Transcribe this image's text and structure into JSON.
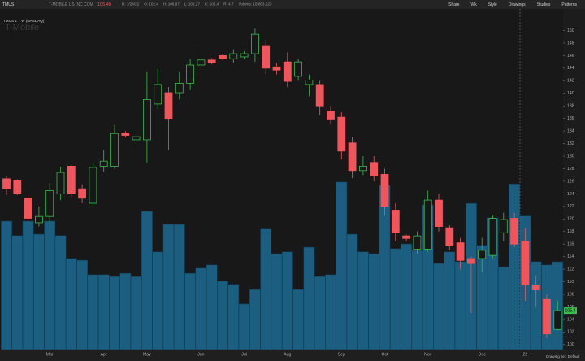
{
  "chart_data": {
    "type": "candlestick",
    "symbol": "TMUS",
    "company": "T-MOBILE US INC COM",
    "last_price": "105.40",
    "info": [
      "D: 1/24/22",
      "O: 102.4",
      "H: 106.97",
      "L: 102.27",
      "C: 105.4",
      "R: 4.7",
      "Volume: 18,863,623"
    ],
    "chart_label": "TMUS 1 Y W (NASDAQ)",
    "watermark": "T-Mobile",
    "toolbar": [
      "Share",
      "Wk",
      "Style",
      "Drawings",
      "Studies",
      "Patterns"
    ],
    "footer": "Drawing set: Default",
    "last_price_tag": "105.4",
    "categories": [
      null,
      null,
      null,
      null,
      "Mar",
      null,
      null,
      null,
      null,
      "Apr",
      null,
      null,
      null,
      "May",
      null,
      null,
      null,
      null,
      "Jun",
      null,
      null,
      null,
      "Jul",
      null,
      null,
      null,
      "Aug",
      null,
      null,
      null,
      null,
      "Sep",
      null,
      null,
      null,
      "Oct",
      null,
      null,
      null,
      "Nov",
      null,
      null,
      null,
      null,
      "Dec",
      null,
      null,
      null,
      "22",
      null,
      null,
      null
    ],
    "open": [
      126.4,
      126.1,
      123.3,
      119.4,
      120.4,
      124.0,
      128.4,
      124.8,
      122.5,
      128.4,
      128.4,
      133.7,
      132.6,
      132.6,
      138.3,
      140.1,
      140.1,
      141.6,
      144.5,
      145.3,
      146.0,
      145.5,
      145.8,
      146.3,
      147.6,
      144.2,
      145.0,
      142.7,
      141.4,
      141.4,
      137.2,
      136.2,
      132.1,
      127.7,
      129.0,
      127.1,
      121.4,
      117.3,
      115.2,
      115.2,
      123.0,
      118.6,
      116.2,
      113.7,
      113.7,
      114.2,
      117.8,
      120.1,
      116.5,
      109.5,
      107.2,
      102.4
    ],
    "high": [
      126.9,
      126.3,
      123.8,
      122.0,
      125.8,
      128.3,
      128.6,
      125.5,
      128.8,
      131.0,
      135.0,
      134.0,
      133.5,
      143.5,
      143.9,
      141.0,
      143.5,
      145.5,
      148.0,
      145.6,
      146.2,
      147.0,
      146.7,
      150.3,
      148.5,
      144.8,
      146.5,
      145.5,
      143.0,
      142.0,
      138.0,
      137.0,
      133.0,
      130.0,
      130.0,
      128.0,
      122.5,
      117.5,
      118.0,
      124.5,
      124.0,
      119.0,
      117.0,
      114.0,
      117.0,
      120.5,
      121.0,
      121.0,
      118.5,
      111.0,
      108.0,
      106.97
    ],
    "low": [
      123.8,
      123.8,
      119.6,
      118.8,
      119.3,
      123.0,
      123.5,
      122.5,
      122.0,
      127.5,
      128.0,
      133.0,
      132.0,
      129.0,
      137.5,
      131.0,
      139.0,
      140.5,
      143.0,
      144.6,
      145.3,
      144.8,
      145.5,
      145.0,
      143.0,
      143.0,
      141.0,
      142.0,
      139.5,
      136.5,
      135.0,
      129.5,
      126.5,
      127.0,
      126.0,
      120.5,
      116.5,
      116.5,
      114.5,
      114.8,
      118.0,
      115.0,
      112.0,
      105.0,
      111.5,
      113.8,
      116.5,
      115.5,
      107.0,
      106.0,
      101.0,
      102.27
    ],
    "close": [
      124.8,
      124.0,
      120.1,
      120.4,
      124.5,
      127.4,
      124.0,
      123.3,
      128.2,
      129.2,
      133.6,
      133.3,
      133.1,
      139.0,
      141.4,
      136.0,
      141.6,
      144.5,
      145.3,
      144.9,
      145.5,
      146.3,
      146.3,
      149.4,
      144.0,
      143.7,
      141.9,
      145.0,
      142.1,
      138.0,
      135.9,
      130.8,
      127.7,
      128.4,
      126.9,
      122.0,
      117.8,
      116.9,
      117.3,
      123.0,
      118.8,
      115.7,
      113.4,
      112.9,
      115.0,
      120.1,
      119.9,
      116.0,
      109.5,
      108.7,
      101.7,
      105.4
    ],
    "volume": [
      27600000,
      24500000,
      27600000,
      24800000,
      27600000,
      24500000,
      19600000,
      19200000,
      16100000,
      16100000,
      15700000,
      16400000,
      15700000,
      29700000,
      21000000,
      26900000,
      26900000,
      16400000,
      17500000,
      18200000,
      14700000,
      14000000,
      9800000,
      12900000,
      25900000,
      20600000,
      21000000,
      12900000,
      22000000,
      15700000,
      16100000,
      36000000,
      24800000,
      21000000,
      20600000,
      35300000,
      21700000,
      22700000,
      21300000,
      31100000,
      18500000,
      21000000,
      18900000,
      31400000,
      22400000,
      28300000,
      17800000,
      35600000,
      28700000,
      18900000,
      18200000,
      18863623
    ],
    "up_color": "#3cba4c",
    "down_color": "#f2545b",
    "volume_color": "#1b5e80",
    "ylim": [
      99.2,
      153.3
    ],
    "yticks": [
      100,
      102,
      104,
      106,
      108,
      110,
      112,
      114,
      116,
      118,
      120,
      122,
      124,
      126,
      128,
      130,
      132,
      134,
      136,
      138,
      140,
      142,
      144,
      146,
      148,
      150
    ],
    "y2lim": [
      0,
      73000000
    ]
  }
}
